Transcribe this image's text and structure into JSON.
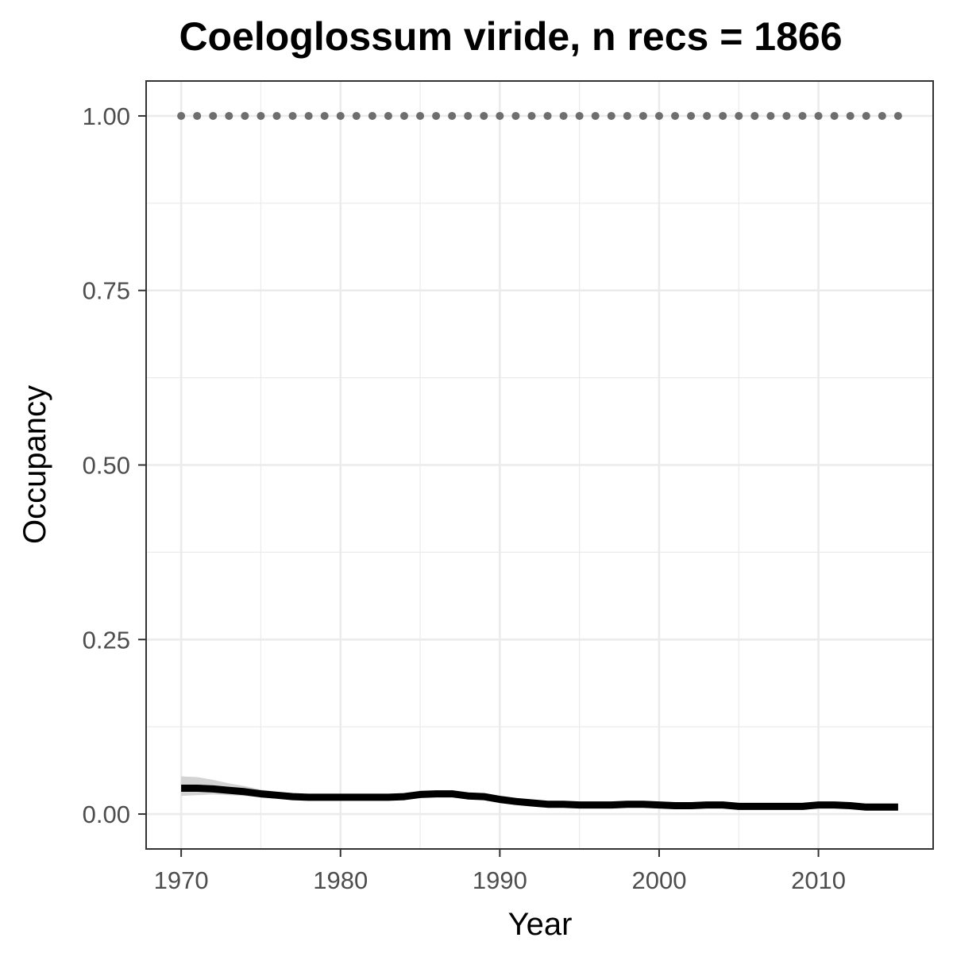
{
  "chart_data": {
    "type": "line",
    "title": "Coeloglossum viride, n recs = 1866",
    "xlabel": "Year",
    "ylabel": "Occupancy",
    "xlim": [
      1967.8,
      2017.2
    ],
    "ylim": [
      -0.05,
      1.05
    ],
    "x_ticks": [
      1970,
      1980,
      1990,
      2000,
      2010
    ],
    "x_tick_labels": [
      "1970",
      "1980",
      "1990",
      "2000",
      "2010"
    ],
    "y_ticks": [
      0,
      0.25,
      0.5,
      0.75,
      1.0
    ],
    "y_tick_labels": [
      "0.00",
      "0.25",
      "0.50",
      "0.75",
      "1.00"
    ],
    "grid": true,
    "legend": "none",
    "colors": {
      "line": "#000000",
      "ribbon": "#d3d3d3",
      "points": "#6e6e6e",
      "grid": "#ebebeb",
      "panel_border": "#333333"
    },
    "series": [
      {
        "kind": "line",
        "x": [
          1970,
          1971,
          1972,
          1973,
          1974,
          1975,
          1976,
          1977,
          1978,
          1979,
          1980,
          1981,
          1982,
          1983,
          1984,
          1985,
          1986,
          1987,
          1988,
          1989,
          1990,
          1991,
          1992,
          1993,
          1994,
          1995,
          1996,
          1997,
          1998,
          1999,
          2000,
          2001,
          2002,
          2003,
          2004,
          2005,
          2006,
          2007,
          2008,
          2009,
          2010,
          2011,
          2012,
          2013,
          2014,
          2015
        ],
        "y": [
          0.037,
          0.037,
          0.036,
          0.034,
          0.032,
          0.029,
          0.027,
          0.025,
          0.024,
          0.024,
          0.024,
          0.024,
          0.024,
          0.024,
          0.025,
          0.028,
          0.029,
          0.029,
          0.026,
          0.025,
          0.021,
          0.018,
          0.016,
          0.014,
          0.014,
          0.013,
          0.013,
          0.013,
          0.014,
          0.014,
          0.013,
          0.012,
          0.012,
          0.013,
          0.013,
          0.011,
          0.011,
          0.011,
          0.011,
          0.011,
          0.013,
          0.013,
          0.012,
          0.01,
          0.01,
          0.01
        ]
      },
      {
        "kind": "ribbon",
        "x": [
          1970,
          1971,
          1972,
          1973,
          1974,
          1975,
          1976,
          1977,
          1978,
          1979,
          1980,
          1981,
          1982,
          1983,
          1984,
          1985,
          1986,
          1987,
          1988,
          1989,
          1990,
          1991,
          1992,
          1993,
          1994,
          1995,
          1996,
          1997,
          1998,
          1999,
          2000,
          2001,
          2002,
          2003,
          2004,
          2005,
          2006,
          2007,
          2008,
          2009,
          2010,
          2011,
          2012,
          2013,
          2014,
          2015
        ],
        "lower": [
          0.026,
          0.027,
          0.028,
          0.027,
          0.026,
          0.024,
          0.022,
          0.021,
          0.02,
          0.02,
          0.02,
          0.02,
          0.02,
          0.02,
          0.021,
          0.024,
          0.026,
          0.026,
          0.023,
          0.022,
          0.018,
          0.016,
          0.014,
          0.012,
          0.012,
          0.011,
          0.011,
          0.011,
          0.012,
          0.012,
          0.011,
          0.01,
          0.01,
          0.011,
          0.011,
          0.009,
          0.009,
          0.009,
          0.009,
          0.009,
          0.011,
          0.011,
          0.01,
          0.008,
          0.008,
          0.008
        ],
        "upper": [
          0.054,
          0.053,
          0.049,
          0.044,
          0.04,
          0.035,
          0.032,
          0.03,
          0.029,
          0.029,
          0.029,
          0.029,
          0.029,
          0.029,
          0.03,
          0.032,
          0.033,
          0.033,
          0.03,
          0.028,
          0.024,
          0.021,
          0.018,
          0.016,
          0.016,
          0.015,
          0.015,
          0.015,
          0.016,
          0.016,
          0.015,
          0.014,
          0.014,
          0.015,
          0.015,
          0.013,
          0.013,
          0.013,
          0.013,
          0.013,
          0.015,
          0.015,
          0.014,
          0.012,
          0.012,
          0.012
        ]
      },
      {
        "kind": "points",
        "x": [
          1970,
          1971,
          1972,
          1973,
          1974,
          1975,
          1976,
          1977,
          1978,
          1979,
          1980,
          1981,
          1982,
          1983,
          1984,
          1985,
          1986,
          1987,
          1988,
          1989,
          1990,
          1991,
          1992,
          1993,
          1994,
          1995,
          1996,
          1997,
          1998,
          1999,
          2000,
          2001,
          2002,
          2003,
          2004,
          2005,
          2006,
          2007,
          2008,
          2009,
          2010,
          2011,
          2012,
          2013,
          2014,
          2015
        ],
        "y": [
          1,
          1,
          1,
          1,
          1,
          1,
          1,
          1,
          1,
          1,
          1,
          1,
          1,
          1,
          1,
          1,
          1,
          1,
          1,
          1,
          1,
          1,
          1,
          1,
          1,
          1,
          1,
          1,
          1,
          1,
          1,
          1,
          1,
          1,
          1,
          1,
          1,
          1,
          1,
          1,
          1,
          1,
          1,
          1,
          1,
          1
        ]
      }
    ]
  }
}
